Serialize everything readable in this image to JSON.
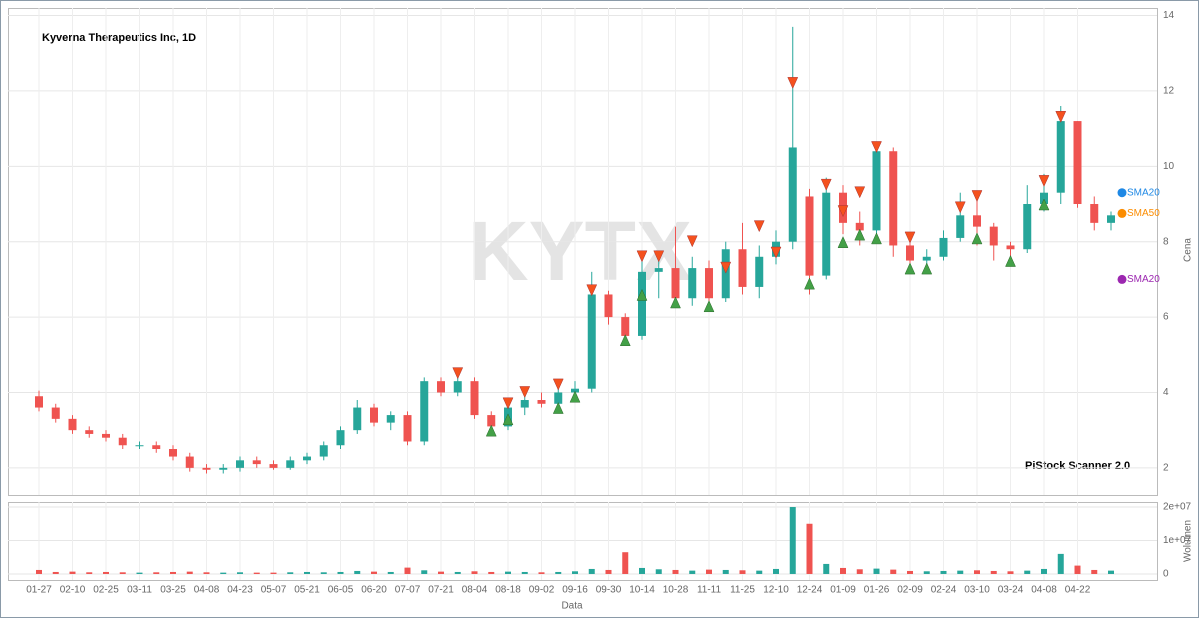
{
  "chart_data": {
    "type": "candlestick",
    "title": "Kyverna Therapeutics Inc, 1D",
    "watermark": "KYTX",
    "footer": "PiStock Scanner 2.0",
    "x_label": "Data",
    "y_label": "Cena",
    "up_color": "#26a69a",
    "down_color": "#ef5350",
    "sell_color": "#f4511e",
    "buy_color": "#43a047",
    "grid": true,
    "categories": [
      "01-27",
      null,
      "02-10",
      null,
      "02-25",
      null,
      "03-11",
      null,
      "03-25",
      null,
      "04-08",
      null,
      "04-23",
      null,
      "05-07",
      null,
      "05-21",
      null,
      "06-05",
      null,
      "06-20",
      null,
      "07-07",
      null,
      "07-21",
      null,
      "08-04",
      null,
      "08-18",
      null,
      "09-02",
      null,
      "09-16",
      null,
      "09-30",
      null,
      "10-14",
      null,
      "10-28",
      null,
      "11-11",
      null,
      "11-25",
      null,
      "12-10",
      null,
      "12-24",
      null,
      "01-09",
      null,
      "01-26",
      null,
      "02-09",
      null,
      "02-24",
      null,
      "03-10",
      null,
      "03-24",
      null,
      "04-08",
      null,
      "04-22",
      null,
      null
    ],
    "open": [
      3.9,
      3.6,
      3.3,
      3.0,
      2.9,
      2.8,
      2.6,
      2.6,
      2.5,
      2.3,
      2.0,
      1.95,
      2.0,
      2.2,
      2.1,
      2.0,
      2.2,
      2.3,
      2.6,
      3.0,
      3.6,
      3.2,
      3.4,
      2.7,
      4.3,
      4.0,
      4.3,
      3.4,
      3.1,
      3.6,
      3.8,
      3.7,
      4.0,
      4.1,
      6.6,
      6.0,
      5.5,
      7.2,
      7.3,
      6.5,
      7.3,
      6.5,
      7.8,
      6.8,
      7.6,
      8.0,
      9.2,
      7.1,
      9.3,
      8.5,
      8.3,
      10.4,
      7.9,
      7.5,
      7.6,
      8.1,
      8.7,
      8.4,
      7.9,
      7.8,
      9.0,
      9.3,
      11.2,
      9.0,
      8.5
    ],
    "high": [
      4.05,
      3.7,
      3.4,
      3.1,
      3.0,
      2.9,
      2.7,
      2.7,
      2.6,
      2.4,
      2.1,
      2.1,
      2.3,
      2.3,
      2.2,
      2.3,
      2.4,
      2.7,
      3.1,
      3.8,
      3.7,
      3.5,
      3.5,
      4.4,
      4.4,
      4.5,
      4.4,
      3.5,
      3.7,
      3.9,
      4.0,
      4.1,
      4.3,
      7.2,
      6.7,
      6.1,
      7.7,
      7.7,
      8.4,
      7.6,
      7.5,
      8.0,
      8.5,
      7.9,
      8.3,
      13.7,
      9.4,
      9.7,
      9.5,
      8.8,
      10.6,
      10.5,
      8.2,
      7.8,
      8.3,
      9.3,
      9.1,
      8.5,
      8.0,
      9.5,
      9.8,
      11.6,
      11.2,
      9.2,
      8.8
    ],
    "low": [
      3.5,
      3.2,
      2.9,
      2.8,
      2.7,
      2.5,
      2.5,
      2.4,
      2.2,
      1.9,
      1.85,
      1.85,
      1.9,
      2.0,
      1.95,
      1.95,
      2.1,
      2.2,
      2.5,
      2.9,
      3.1,
      3.0,
      2.6,
      2.6,
      3.9,
      3.9,
      3.3,
      2.9,
      3.0,
      3.4,
      3.6,
      3.5,
      3.8,
      4.0,
      5.8,
      5.3,
      5.4,
      6.5,
      6.3,
      6.3,
      6.2,
      6.4,
      6.6,
      6.5,
      7.4,
      7.8,
      6.6,
      7.0,
      8.2,
      7.9,
      8.1,
      7.6,
      7.2,
      7.3,
      7.5,
      8.0,
      7.9,
      7.5,
      7.4,
      7.7,
      8.8,
      9.0,
      8.9,
      8.3,
      8.3
    ],
    "close": [
      3.6,
      3.3,
      3.0,
      2.9,
      2.8,
      2.6,
      2.6,
      2.5,
      2.3,
      2.0,
      1.95,
      2.0,
      2.2,
      2.1,
      2.0,
      2.2,
      2.3,
      2.6,
      3.0,
      3.6,
      3.2,
      3.4,
      2.7,
      4.3,
      4.0,
      4.3,
      3.4,
      3.1,
      3.6,
      3.8,
      3.7,
      4.0,
      4.1,
      6.6,
      6.0,
      5.5,
      7.2,
      7.3,
      6.5,
      7.3,
      6.5,
      7.8,
      6.8,
      7.6,
      8.0,
      10.5,
      7.1,
      9.3,
      8.5,
      8.3,
      10.4,
      7.9,
      7.5,
      7.6,
      8.1,
      8.7,
      8.4,
      7.9,
      7.8,
      9.0,
      9.3,
      11.2,
      9.0,
      8.5,
      8.7
    ],
    "sell_signals": [
      null,
      null,
      null,
      null,
      null,
      null,
      null,
      null,
      null,
      null,
      null,
      null,
      null,
      null,
      null,
      null,
      null,
      null,
      null,
      null,
      null,
      null,
      null,
      null,
      null,
      4.5,
      null,
      null,
      3.7,
      4.0,
      null,
      4.2,
      null,
      6.7,
      null,
      null,
      7.6,
      7.6,
      null,
      8.0,
      null,
      7.3,
      null,
      8.4,
      7.7,
      12.2,
      null,
      9.5,
      8.8,
      9.3,
      10.5,
      null,
      8.1,
      null,
      null,
      8.9,
      9.2,
      null,
      null,
      null,
      9.6,
      11.3,
      null,
      null,
      null
    ],
    "buy_signals": [
      null,
      null,
      null,
      null,
      null,
      null,
      null,
      null,
      null,
      null,
      null,
      null,
      null,
      null,
      null,
      null,
      null,
      null,
      null,
      null,
      null,
      null,
      null,
      null,
      null,
      null,
      null,
      3.0,
      3.3,
      null,
      null,
      3.6,
      3.9,
      null,
      null,
      5.4,
      6.6,
      null,
      6.4,
      null,
      6.3,
      null,
      null,
      null,
      null,
      null,
      6.9,
      null,
      8.0,
      8.2,
      8.1,
      null,
      7.3,
      7.3,
      null,
      null,
      8.1,
      null,
      7.5,
      null,
      9.0,
      null,
      null,
      null,
      null
    ],
    "ylim": [
      1.28,
      14.2
    ],
    "yticks": [
      2,
      4,
      6,
      8,
      10,
      12,
      14
    ],
    "sma_labels": [
      {
        "label": "SMA20",
        "color": "#1e88e5",
        "value": 9.3
      },
      {
        "label": "SMA50",
        "color": "#fb8c00",
        "value": 8.75
      },
      {
        "label": "SMA20",
        "color": "#9c27b0",
        "value": 7.0
      }
    ],
    "volume": {
      "label": "Wolumen",
      "values": [
        1200000,
        600000,
        700000,
        500000,
        600000,
        500000,
        400000,
        500000,
        600000,
        700000,
        500000,
        400000,
        500000,
        400000,
        400000,
        500000,
        600000,
        500000,
        600000,
        900000,
        700000,
        600000,
        1900000,
        1100000,
        700000,
        600000,
        800000,
        600000,
        700000,
        600000,
        500000,
        600000,
        800000,
        1500000,
        1200000,
        6500000,
        1800000,
        1400000,
        1200000,
        1000000,
        1300000,
        1200000,
        1100000,
        1000000,
        1500000,
        20000000,
        15000000,
        3000000,
        1800000,
        1400000,
        1600000,
        1300000,
        900000,
        800000,
        900000,
        1000000,
        1100000,
        900000,
        800000,
        1000000,
        1500000,
        6000000,
        2500000,
        1200000,
        1000000
      ],
      "ylim": [
        -1800000,
        21500000
      ],
      "yticks": [
        0,
        {
          "value": 10000000,
          "label": "1e+07"
        },
        {
          "value": 20000000,
          "label": "2e+07"
        }
      ]
    }
  }
}
